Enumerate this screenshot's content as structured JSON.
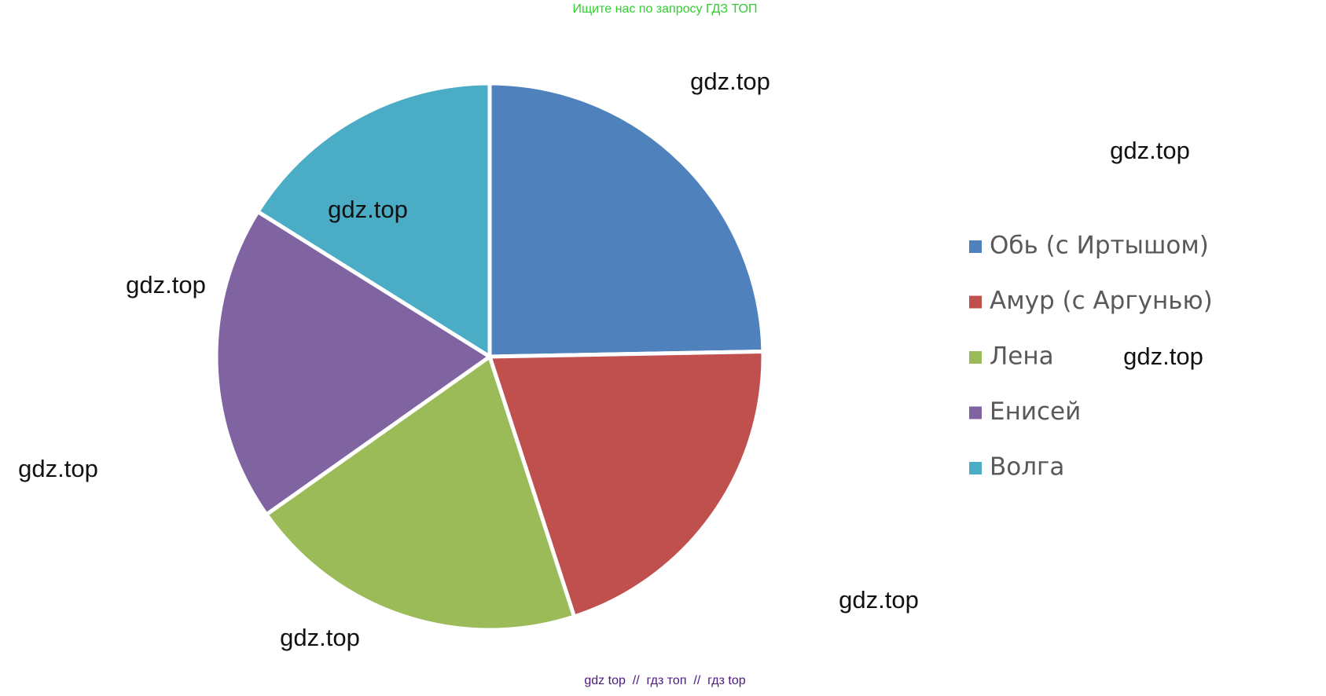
{
  "header": "Ищите нас по запросу ГДЗ ТОП",
  "footer": "gdz top  //  гдз топ  //  гдз top",
  "watermarks": [
    "gdz.top",
    "gdz.top",
    "gdz.top",
    "gdz.top",
    "gdz.top",
    "gdz.top",
    "gdz.top",
    "gdz.top"
  ],
  "chart_data": {
    "type": "pie",
    "categories": [
      "Обь (с Иртышом)",
      "Амур (с Аргунью)",
      "Лена",
      "Енисей",
      "Волга"
    ],
    "values": [
      24.7,
      20.3,
      20.2,
      18.7,
      16.1
    ],
    "colors": [
      "#4f81bd",
      "#c0504d",
      "#9bbb59",
      "#8064a2",
      "#4bacc6"
    ],
    "legend": "right"
  }
}
